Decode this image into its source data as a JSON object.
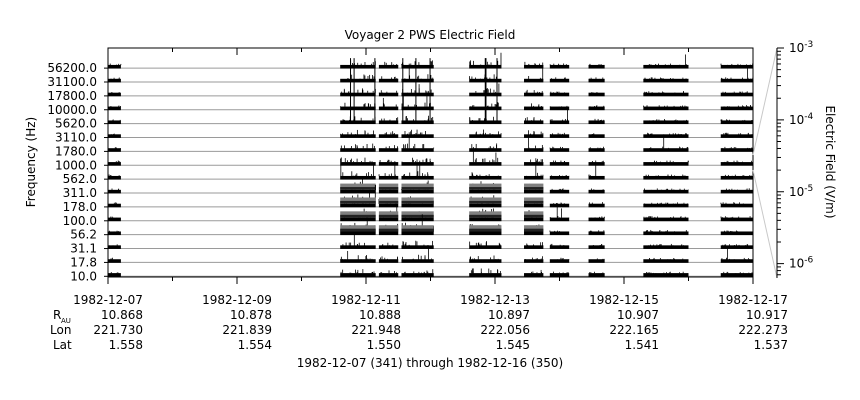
{
  "chart_data": {
    "type": "heatmap",
    "title": "Voyager 2 PWS Electric Field",
    "ylabel": "Frequency (Hz)",
    "colorbar_label": "Electric Field (V/m)",
    "colorbar_ticks": [
      "10^-3",
      "10^-4",
      "10^-5",
      "10^-6"
    ],
    "colorbar_tick_values": [
      0.001,
      0.0001,
      1e-05,
      1e-06
    ],
    "colorbar_scale": "log",
    "x_range_days": [
      0,
      10
    ],
    "x_tick_labels": [
      "1982-12-07",
      "1982-12-09",
      "1982-12-11",
      "1982-12-13",
      "1982-12-15",
      "1982-12-17"
    ],
    "x_tick_days": [
      0,
      2,
      4,
      6,
      8,
      10
    ],
    "frequency_channels": [
      "56200.0",
      "31100.0",
      "17800.0",
      "10000.0",
      "5620.0",
      "3110.0",
      "1780.0",
      "1000.0",
      "562.0",
      "311.0",
      "178.0",
      "100.0",
      "56.2",
      "31.1",
      "17.8",
      "10.0"
    ],
    "ephemeris": {
      "row_labels": [
        "R",
        "Lon",
        "Lat"
      ],
      "r_subscript": "AU",
      "R": [
        "10.868",
        "10.878",
        "10.888",
        "10.897",
        "10.907",
        "10.917"
      ],
      "Lon": [
        "221.730",
        "221.839",
        "221.948",
        "222.056",
        "222.165",
        "222.273"
      ],
      "Lat": [
        "1.558",
        "1.554",
        "1.550",
        "1.545",
        "1.541",
        "1.537"
      ]
    },
    "date_range_caption": "1982-12-07 (341) through 1982-12-16 (350)",
    "data_segments": [
      {
        "start": 0.0,
        "end": 0.2,
        "intensity": "low"
      },
      {
        "start": 3.6,
        "end": 4.15,
        "intensity": "high"
      },
      {
        "start": 4.2,
        "end": 4.5,
        "intensity": "medium"
      },
      {
        "start": 4.55,
        "end": 5.05,
        "intensity": "high"
      },
      {
        "start": 5.6,
        "end": 6.1,
        "intensity": "high"
      },
      {
        "start": 6.45,
        "end": 6.75,
        "intensity": "medium"
      },
      {
        "start": 6.85,
        "end": 7.15,
        "intensity": "low"
      },
      {
        "start": 7.45,
        "end": 7.7,
        "intensity": "low"
      },
      {
        "start": 8.3,
        "end": 9.0,
        "intensity": "low"
      },
      {
        "start": 9.5,
        "end": 10.0,
        "intensity": "low"
      }
    ],
    "grid": true
  }
}
